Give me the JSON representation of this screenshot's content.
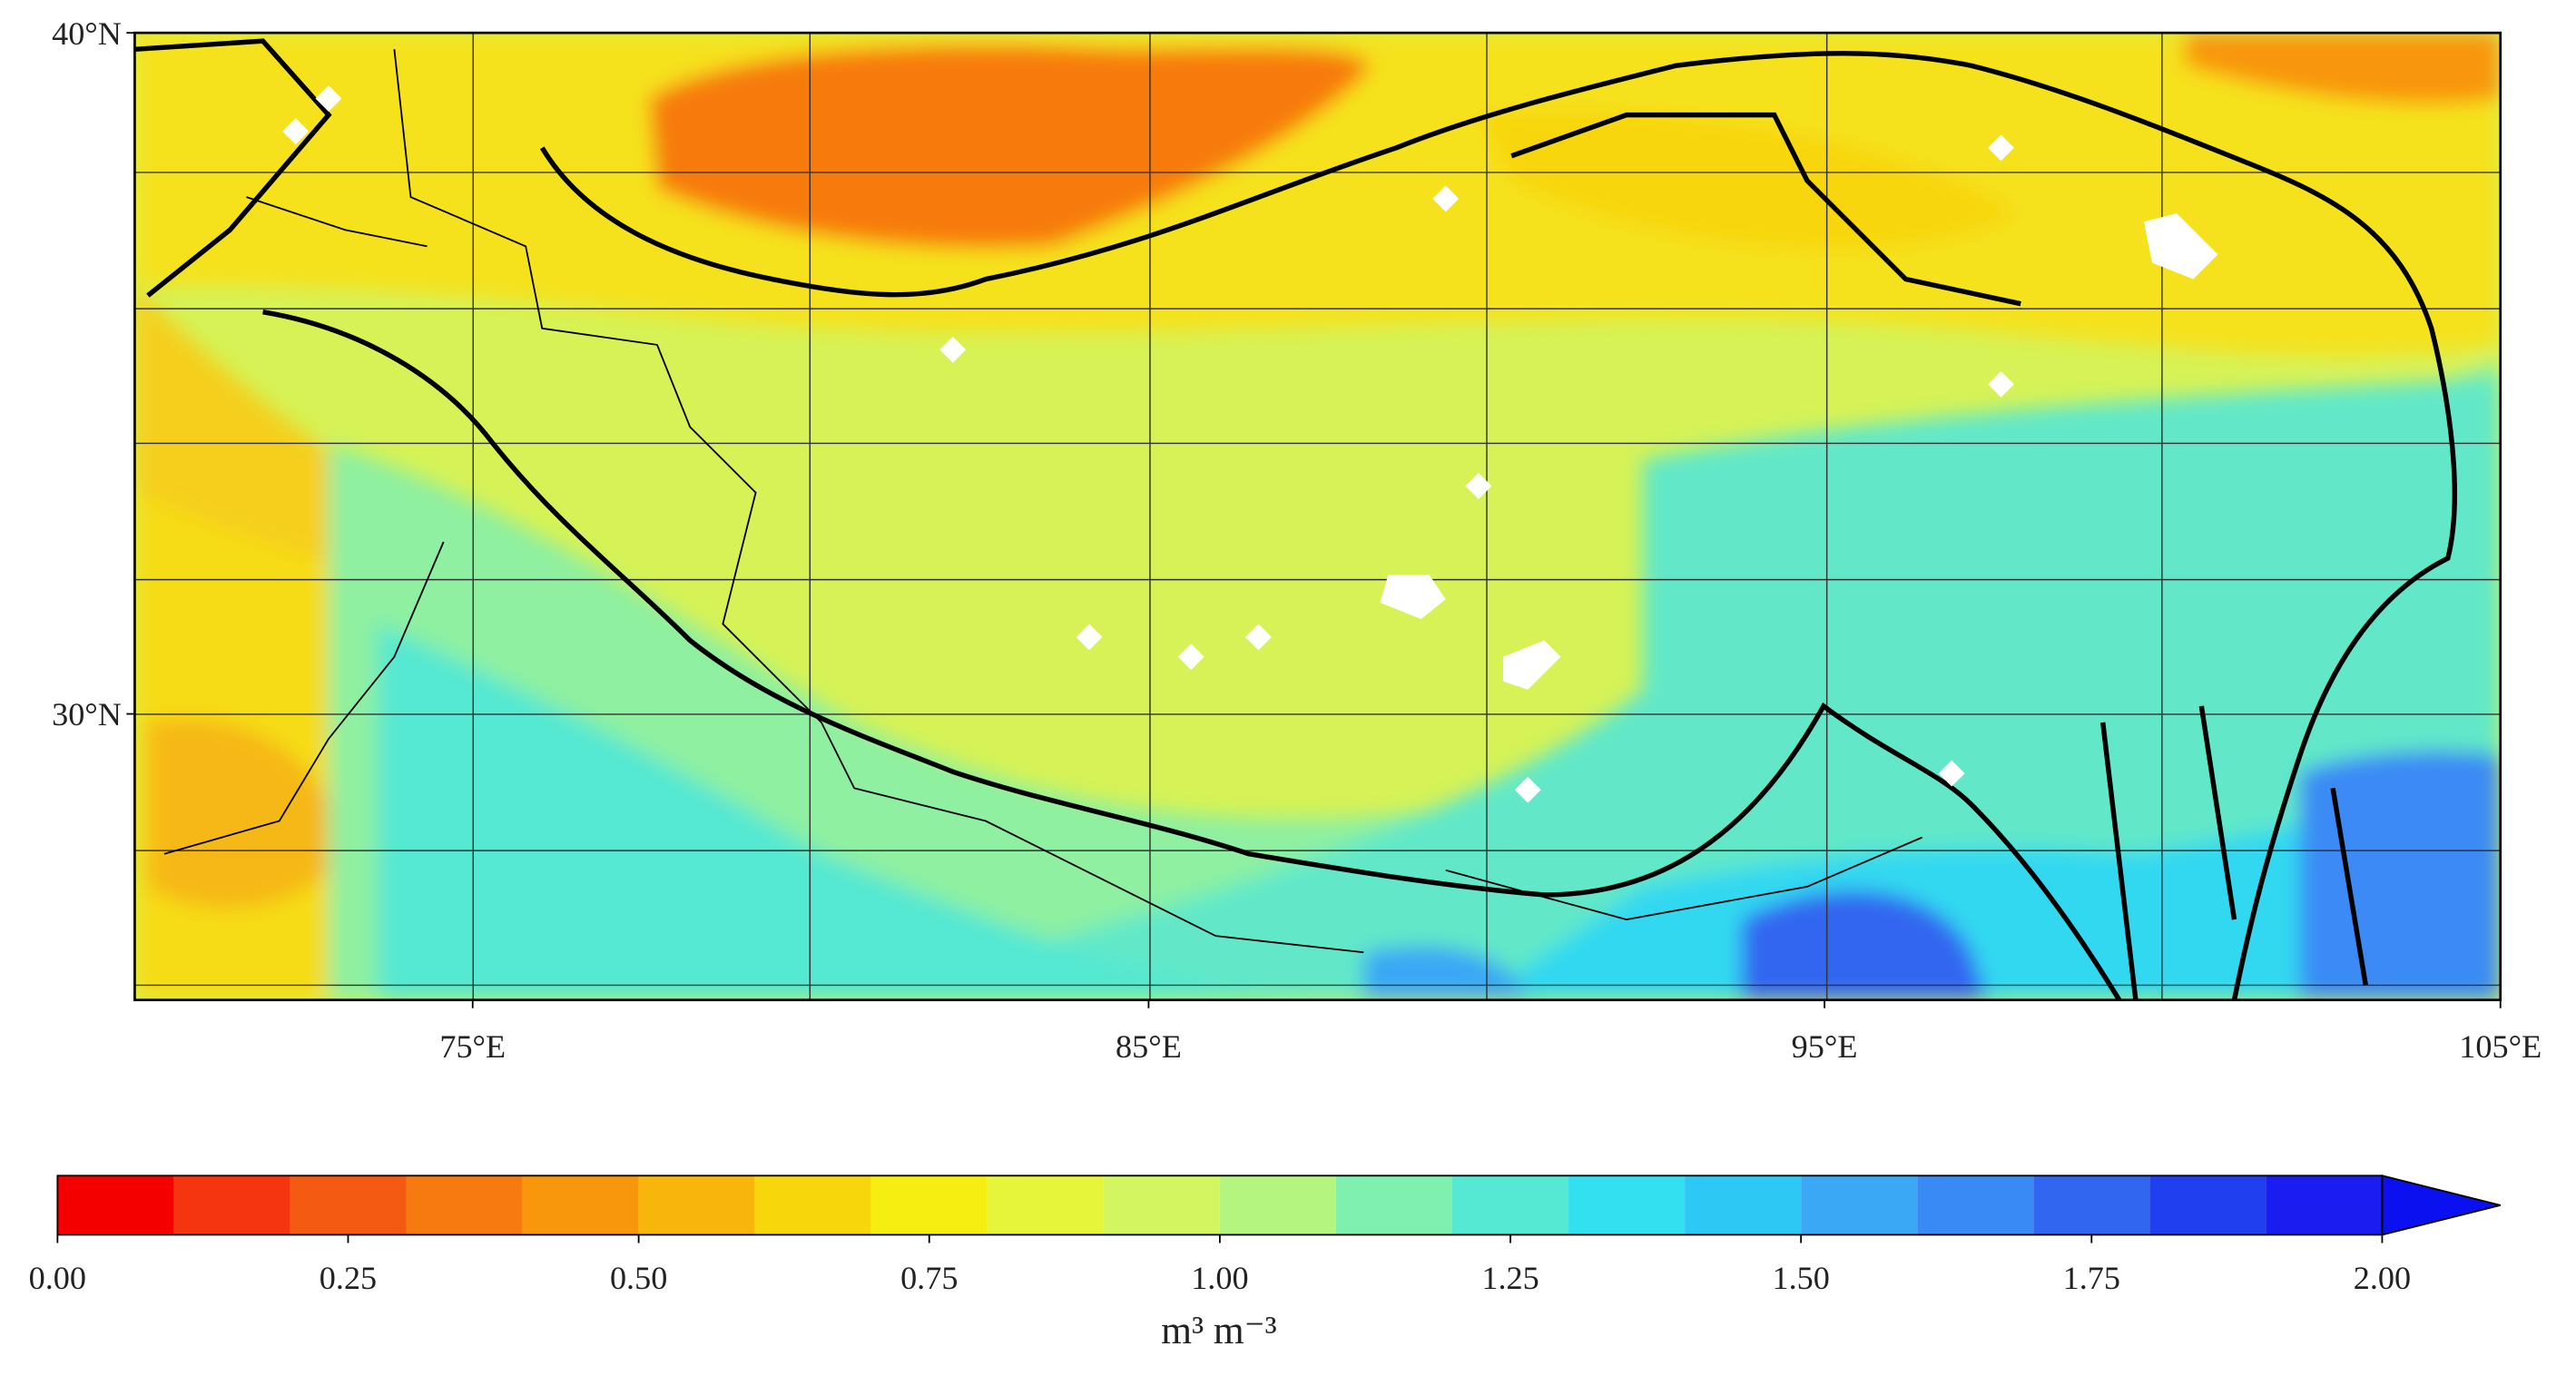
{
  "map": {
    "xlim": [
      70,
      105
    ],
    "ylim": [
      25.8,
      40
    ],
    "lat_ticks": [
      {
        "value": 40,
        "label": "40°N"
      },
      {
        "value": 30,
        "label": "30°N"
      }
    ],
    "lon_ticks": [
      {
        "value": 75,
        "label": "75°E"
      },
      {
        "value": 85,
        "label": "85°E"
      },
      {
        "value": 95,
        "label": "95°E"
      },
      {
        "value": 105,
        "label": "105°E"
      }
    ]
  },
  "colorbar": {
    "label": "m³ m⁻³",
    "levels": [
      0,
      0.1,
      0.2,
      0.3,
      0.4,
      0.5,
      0.6,
      0.7,
      0.8,
      0.9,
      1.0,
      1.1,
      1.2,
      1.3,
      1.4,
      1.5,
      1.6,
      1.7,
      1.8,
      1.9,
      2.0
    ],
    "colors": [
      "#f40000",
      "#f5350f",
      "#f55a12",
      "#f77a10",
      "#f8960c",
      "#f8b60c",
      "#f8d60c",
      "#f6ee10",
      "#e6f53a",
      "#d2f560",
      "#b4f580",
      "#7ff0b0",
      "#55e8d2",
      "#32e0f0",
      "#2ec8f5",
      "#3aa8f5",
      "#3a8af5",
      "#3066f0",
      "#2040f0",
      "#1a1cf0"
    ],
    "extend_color": "#0a10f0",
    "ticks": [
      {
        "value": 0,
        "label": "0.00"
      },
      {
        "value": 0.25,
        "label": "0.25"
      },
      {
        "value": 0.5,
        "label": "0.50"
      },
      {
        "value": 0.75,
        "label": "0.75"
      },
      {
        "value": 1.0,
        "label": "1.00"
      },
      {
        "value": 1.25,
        "label": "1.25"
      },
      {
        "value": 1.5,
        "label": "1.50"
      },
      {
        "value": 1.75,
        "label": "1.75"
      },
      {
        "value": 2.0,
        "label": "2.00"
      }
    ]
  }
}
